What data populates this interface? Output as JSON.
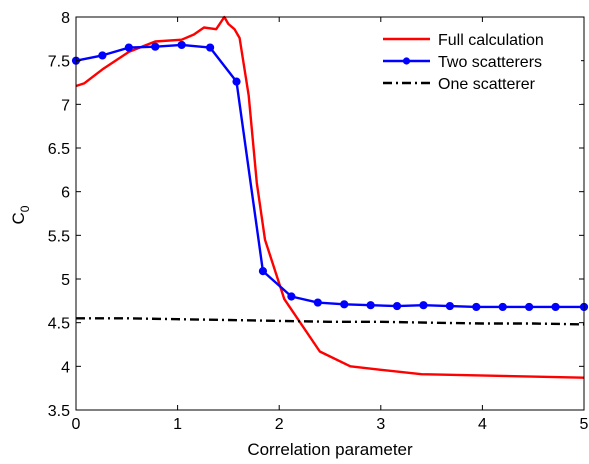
{
  "chart_data": {
    "type": "line",
    "title": "",
    "xlabel": "Correlation parameter",
    "ylabel": "C",
    "ylabel_subscript": "0",
    "xlim": [
      0,
      5
    ],
    "ylim": [
      3.5,
      8
    ],
    "xticks": [
      "0",
      "1",
      "2",
      "3",
      "4",
      "5"
    ],
    "yticks": [
      "3.5",
      "4",
      "4.5",
      "5",
      "5.5",
      "6",
      "6.5",
      "7",
      "7.5",
      "8"
    ],
    "grid": false,
    "legend_position": "top-right",
    "series": [
      {
        "name": "Full calculation",
        "color": "#ff0000",
        "style": "solid",
        "markers": false,
        "x": [
          0,
          0.08,
          0.26,
          0.52,
          0.78,
          1.04,
          1.16,
          1.26,
          1.38,
          1.46,
          1.5,
          1.56,
          1.61,
          1.7,
          1.78,
          1.86,
          2.05,
          2.4,
          2.7,
          3.0,
          3.4,
          3.8,
          4.2,
          4.6,
          5.0
        ],
        "y": [
          7.21,
          7.24,
          7.4,
          7.6,
          7.72,
          7.74,
          7.8,
          7.88,
          7.86,
          8.0,
          7.92,
          7.86,
          7.76,
          7.1,
          6.1,
          5.45,
          4.77,
          4.17,
          4.0,
          3.96,
          3.91,
          3.9,
          3.89,
          3.88,
          3.87
        ]
      },
      {
        "name": "Two scatterers",
        "color": "#0000ff",
        "style": "solid",
        "markers": true,
        "x": [
          0,
          0.26,
          0.52,
          0.78,
          1.04,
          1.32,
          1.58,
          1.84,
          2.12,
          2.38,
          2.64,
          2.9,
          3.16,
          3.42,
          3.68,
          3.94,
          4.2,
          4.46,
          4.72,
          5.0
        ],
        "y": [
          7.5,
          7.56,
          7.65,
          7.66,
          7.68,
          7.65,
          7.26,
          5.09,
          4.8,
          4.73,
          4.71,
          4.7,
          4.69,
          4.7,
          4.69,
          4.68,
          4.68,
          4.68,
          4.68,
          4.68
        ]
      },
      {
        "name": "One scatterer",
        "color": "#000000",
        "style": "dashdot",
        "markers": false,
        "x": [
          0,
          0.5,
          1.0,
          1.5,
          2.0,
          2.5,
          3.0,
          3.5,
          4.0,
          4.5,
          5.0
        ],
        "y": [
          4.55,
          4.55,
          4.54,
          4.53,
          4.52,
          4.51,
          4.51,
          4.5,
          4.49,
          4.49,
          4.48
        ]
      }
    ]
  }
}
